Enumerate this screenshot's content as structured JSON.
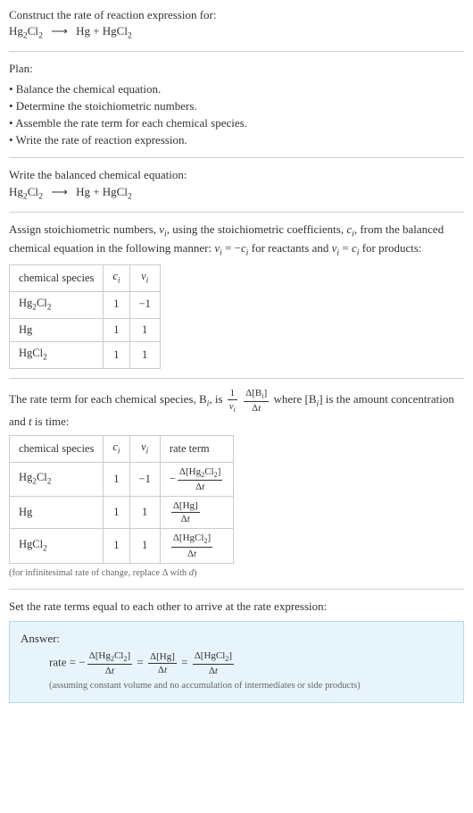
{
  "colors": {
    "text": "#333333",
    "border": "#cccccc",
    "divider": "#d0d0d0",
    "answer_bg": "#e8f4fb",
    "answer_border": "#b8d8ea",
    "note": "#666666"
  },
  "intro": {
    "line1": "Construct the rate of reaction expression for:",
    "equation_html": "Hg<sub>2</sub>Cl<sub>2</sub> <span class='arrow'>⟶</span> Hg + HgCl<sub>2</sub>"
  },
  "plan": {
    "heading": "Plan:",
    "items": [
      "• Balance the chemical equation.",
      "• Determine the stoichiometric numbers.",
      "• Assemble the rate term for each chemical species.",
      "• Write the rate of reaction expression."
    ]
  },
  "balanced": {
    "heading": "Write the balanced chemical equation:",
    "equation_html": "Hg<sub>2</sub>Cl<sub>2</sub> <span class='arrow'>⟶</span> Hg + HgCl<sub>2</sub>"
  },
  "assign": {
    "text_html": "Assign stoichiometric numbers, <span class='italic'>ν<sub>i</sub></span>, using the stoichiometric coefficients, <span class='italic'>c<sub>i</sub></span>, from the balanced chemical equation in the following manner: <span class='italic'>ν<sub>i</sub></span> = −<span class='italic'>c<sub>i</sub></span> for reactants and <span class='italic'>ν<sub>i</sub></span> = <span class='italic'>c<sub>i</sub></span> for products:",
    "table": {
      "headers_html": [
        "chemical species",
        "<span class='italic'>c<sub>i</sub></span>",
        "<span class='italic'>ν<sub>i</sub></span>"
      ],
      "rows_html": [
        [
          "Hg<sub>2</sub>Cl<sub>2</sub>",
          "1",
          "−1"
        ],
        [
          "Hg",
          "1",
          "1"
        ],
        [
          "HgCl<sub>2</sub>",
          "1",
          "1"
        ]
      ],
      "col_align": [
        "left",
        "center",
        "center"
      ]
    }
  },
  "rateterm": {
    "text_before_html": "The rate term for each chemical species, B<sub><span class='italic'>i</span></sub>, is ",
    "main_frac1": {
      "num": "1",
      "den_html": "<span class='italic'>ν<sub>i</sub></span>"
    },
    "main_frac2": {
      "num_html": "Δ[B<sub><span class='italic'>i</span></sub>]",
      "den_html": "Δ<span class='italic'>t</span>"
    },
    "text_after_html": " where [B<sub><span class='italic'>i</span></sub>] is the amount concentration and <span class='italic'>t</span> is time:",
    "table": {
      "headers_html": [
        "chemical species",
        "<span class='italic'>c<sub>i</sub></span>",
        "<span class='italic'>ν<sub>i</sub></span>",
        "rate term"
      ],
      "rows": [
        {
          "species_html": "Hg<sub>2</sub>Cl<sub>2</sub>",
          "c": "1",
          "nu": "−1",
          "term_sign": "−",
          "term_num_html": "Δ[Hg<sub>2</sub>Cl<sub>2</sub>]",
          "term_den_html": "Δ<span class='italic'>t</span>"
        },
        {
          "species_html": "Hg",
          "c": "1",
          "nu": "1",
          "term_sign": "",
          "term_num_html": "Δ[Hg]",
          "term_den_html": "Δ<span class='italic'>t</span>"
        },
        {
          "species_html": "HgCl<sub>2</sub>",
          "c": "1",
          "nu": "1",
          "term_sign": "",
          "term_num_html": "Δ[HgCl<sub>2</sub>]",
          "term_den_html": "Δ<span class='italic'>t</span>"
        }
      ]
    },
    "note_html": "(for infinitesimal rate of change, replace Δ with <span class='italic'>d</span>)"
  },
  "final": {
    "heading": "Set the rate terms equal to each other to arrive at the rate expression:",
    "answer_label": "Answer:",
    "rate_terms": [
      {
        "sign": "−",
        "num_html": "Δ[Hg<sub>2</sub>Cl<sub>2</sub>]",
        "den_html": "Δ<span class='italic'>t</span>"
      },
      {
        "sign": "",
        "num_html": "Δ[Hg]",
        "den_html": "Δ<span class='italic'>t</span>"
      },
      {
        "sign": "",
        "num_html": "Δ[HgCl<sub>2</sub>]",
        "den_html": "Δ<span class='italic'>t</span>"
      }
    ],
    "footnote": "(assuming constant volume and no accumulation of intermediates or side products)"
  }
}
